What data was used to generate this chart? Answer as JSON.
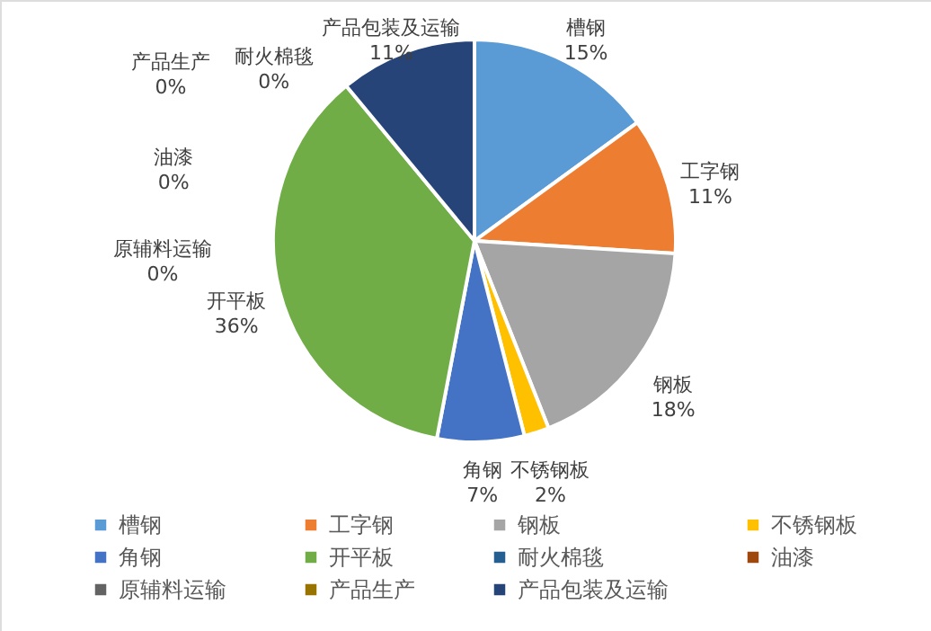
{
  "chart_data": {
    "type": "pie",
    "categories": [
      "槽钢",
      "工字钢",
      "钢板",
      "不锈钢板",
      "角钢",
      "开平板",
      "耐火棉毯",
      "油漆",
      "原辅料运输",
      "产品生产",
      "产品包装及运输"
    ],
    "values": [
      15,
      11,
      18,
      2,
      7,
      36,
      0,
      0,
      0,
      0,
      11
    ],
    "value_labels": [
      "15%",
      "11%",
      "18%",
      "2%",
      "7%",
      "36%",
      "0%",
      "0%",
      "0%",
      "0%",
      "11%"
    ],
    "colors": [
      "#5b9bd5",
      "#ed7d31",
      "#a5a5a5",
      "#ffc000",
      "#4472c4",
      "#70ad47",
      "#255e91",
      "#9e480e",
      "#636363",
      "#997300",
      "#264478"
    ],
    "legend": "bottom"
  }
}
